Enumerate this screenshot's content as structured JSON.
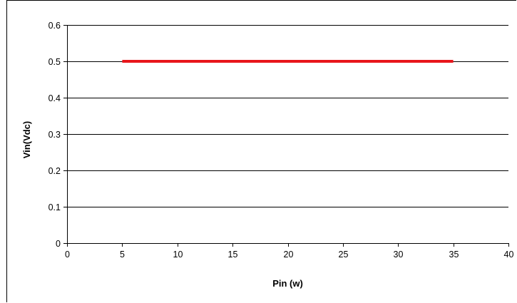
{
  "chart_data": {
    "type": "line",
    "title": "",
    "xlabel": "Pin (w)",
    "ylabel": "Vin(Vdc)",
    "xlim": [
      0,
      40
    ],
    "ylim": [
      0,
      0.6
    ],
    "x_ticks": [
      "0",
      "5",
      "10",
      "15",
      "20",
      "25",
      "30",
      "35",
      "40"
    ],
    "y_ticks": [
      "0",
      "0.1",
      "0.2",
      "0.3",
      "0.4",
      "0.5",
      "0.6"
    ],
    "grid": "horizontal",
    "legend": "none",
    "series": [
      {
        "color": "#e8161b",
        "x": [
          5,
          35
        ],
        "y": [
          0.5,
          0.5
        ]
      }
    ]
  }
}
